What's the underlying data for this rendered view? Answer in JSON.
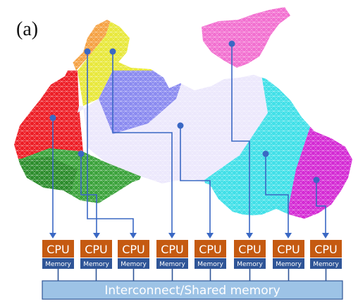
{
  "figure": {
    "panel_label": "(a)"
  },
  "colors": {
    "cpu_box": "#c55a11",
    "memory_box": "#2f5597",
    "bus_fill": "#9dc3e6",
    "bus_border": "#2f5597",
    "connector": "#3a68c4",
    "partition_colors": [
      "#ed1c24",
      "#f5a142",
      "#e8e83a",
      "#3aa23a",
      "#8a8af0",
      "#40e0e8",
      "#f26fd0",
      "#d42ad4"
    ]
  },
  "processors": [
    {
      "cpu": "CPU",
      "memory": "Memory"
    },
    {
      "cpu": "CPU",
      "memory": "Memory"
    },
    {
      "cpu": "CPU",
      "memory": "Memory"
    },
    {
      "cpu": "CPU",
      "memory": "Memory"
    },
    {
      "cpu": "CPU",
      "memory": "Memory"
    },
    {
      "cpu": "CPU",
      "memory": "Memory"
    },
    {
      "cpu": "CPU",
      "memory": "Memory"
    },
    {
      "cpu": "CPU",
      "memory": "Memory"
    }
  ],
  "bus": {
    "label": "Interconnect/Shared memory"
  }
}
